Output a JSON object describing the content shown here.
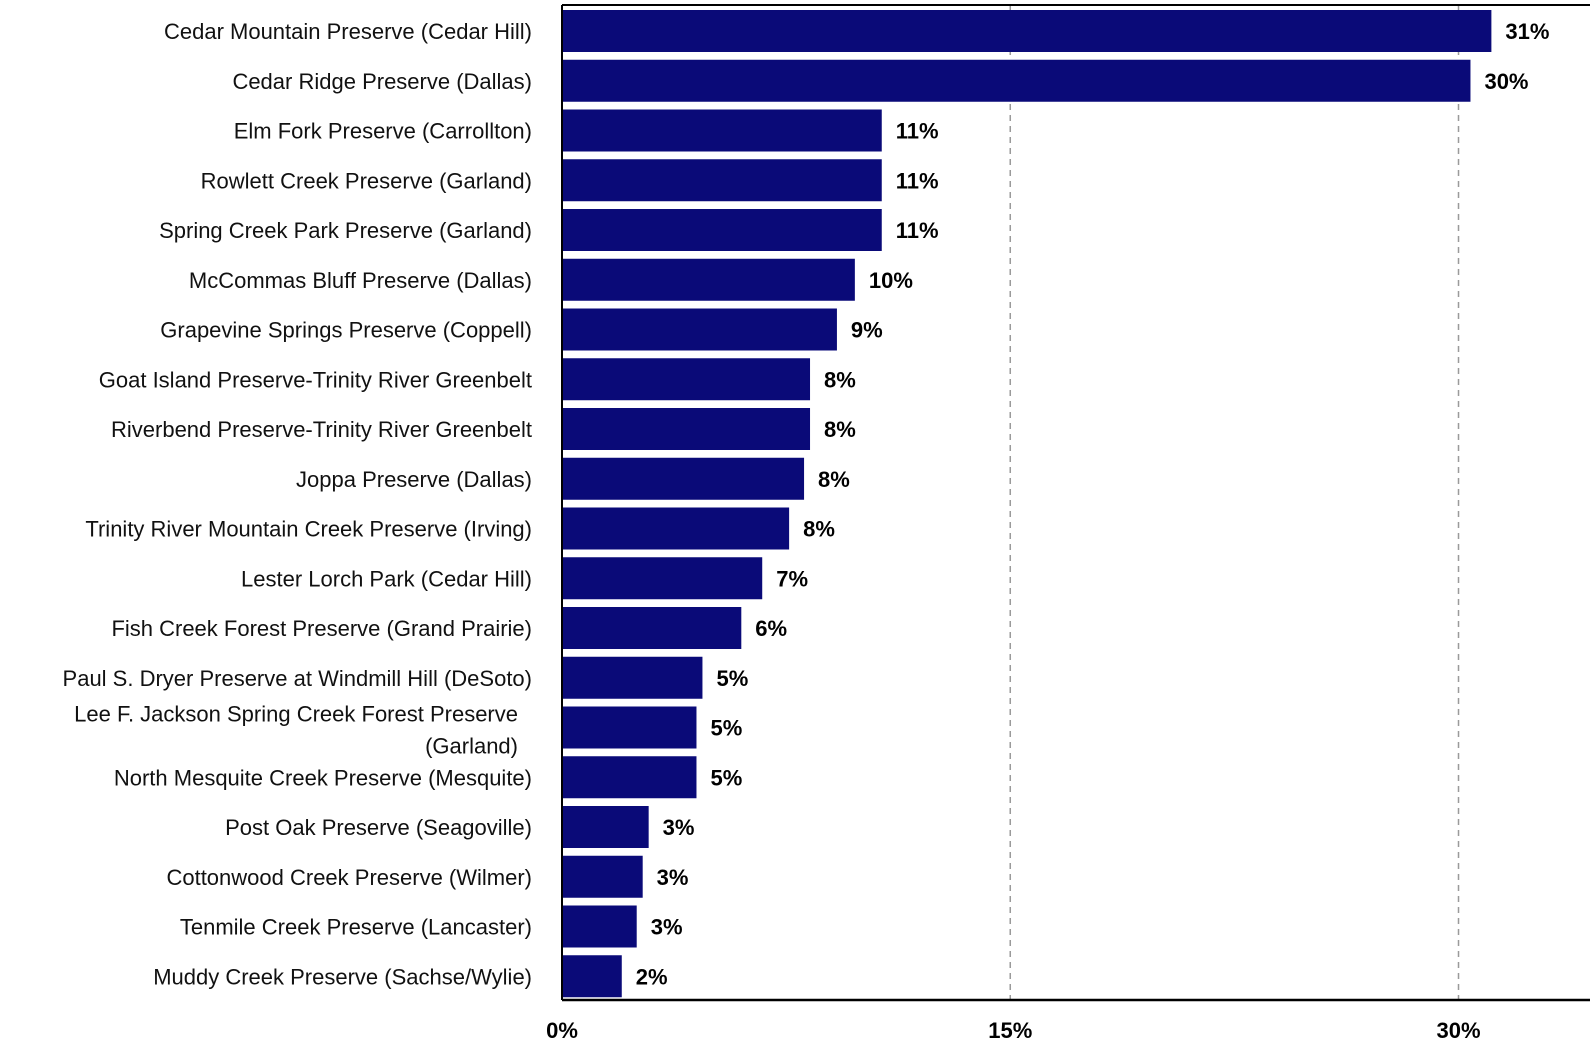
{
  "chart_data": {
    "type": "bar",
    "orientation": "horizontal",
    "categories": [
      "Cedar Mountain Preserve (Cedar Hill)",
      "Cedar Ridge Preserve (Dallas)",
      "Elm Fork Preserve (Carrollton)",
      "Rowlett Creek Preserve (Garland)",
      "Spring Creek Park Preserve (Garland)",
      "McCommas Bluff Preserve (Dallas)",
      "Grapevine Springs Preserve (Coppell)",
      "Goat Island Preserve-Trinity River Greenbelt",
      "Riverbend Preserve-Trinity River Greenbelt",
      "Joppa Preserve (Dallas)",
      "Trinity River Mountain Creek Preserve (Irving)",
      "Lester Lorch Park (Cedar Hill)",
      "Fish Creek Forest Preserve (Grand Prairie)",
      "Paul S. Dryer Preserve at Windmill Hill (DeSoto)",
      "Lee F. Jackson Spring Creek Forest Preserve (Garland)",
      "North Mesquite Creek Preserve (Mesquite)",
      "Post Oak Preserve (Seagoville)",
      "Cottonwood Creek Preserve (Wilmer)",
      "Tenmile Creek Preserve (Lancaster)",
      "Muddy Creek Preserve (Sachse/Wylie)"
    ],
    "values": [
      31.1,
      30.4,
      10.7,
      10.7,
      10.7,
      9.8,
      9.2,
      8.3,
      8.3,
      8.1,
      7.6,
      6.7,
      6.0,
      4.7,
      4.5,
      4.5,
      2.9,
      2.7,
      2.5,
      2.0
    ],
    "value_labels": [
      "31%",
      "30%",
      "11%",
      "11%",
      "11%",
      "10%",
      "9%",
      "8%",
      "8%",
      "8%",
      "8%",
      "7%",
      "6%",
      "5%",
      "5%",
      "5%",
      "3%",
      "3%",
      "3%",
      "2%"
    ],
    "x_ticks": [
      0,
      15,
      30
    ],
    "x_tick_labels": [
      "0%",
      "15%",
      "30%"
    ],
    "xlim": [
      0,
      34.4
    ],
    "bar_color": "#0a0a78",
    "grid": "vertical dashed gridlines at 15% and 30%",
    "legend": "none",
    "title": "",
    "xlabel": "",
    "ylabel": ""
  }
}
